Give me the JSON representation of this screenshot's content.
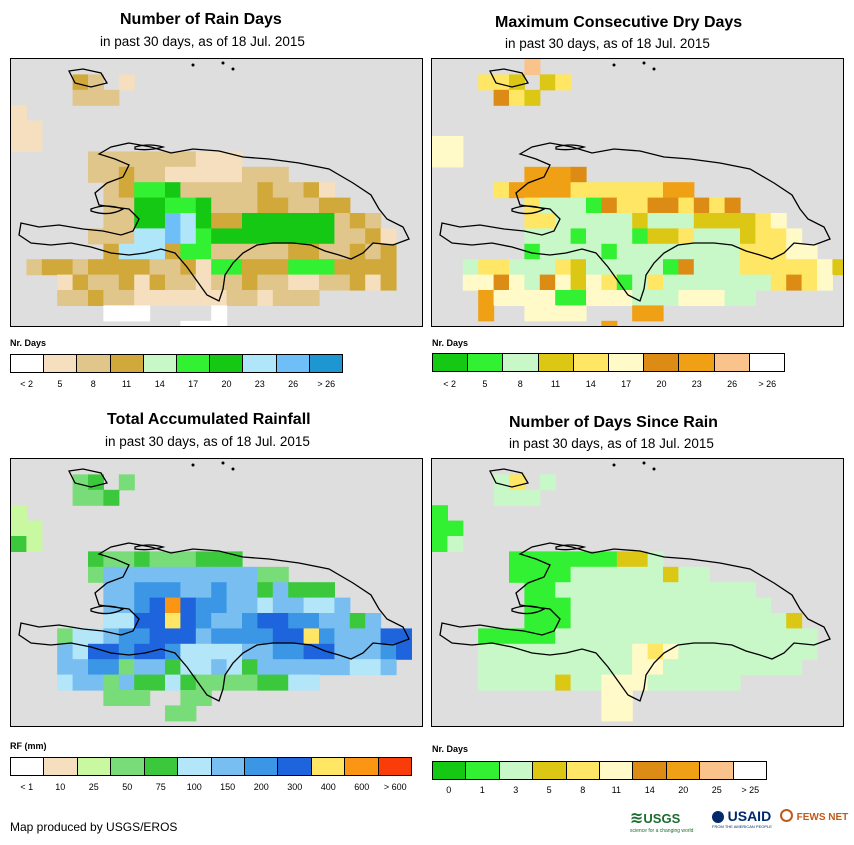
{
  "credit": "Map produced by USGS/EROS",
  "logos": {
    "usgs": "USGS",
    "usgs_tagline": "science for a changing world",
    "usaid": "USAID",
    "usaid_tagline": "FROM THE AMERICAN PEOPLE",
    "fews": "FEWS NET"
  },
  "panels": [
    {
      "title": "Number of Rain Days",
      "subtitle": "in past 30 days, as of 18 Jul. 2015",
      "legend_title": "Nr. Days",
      "legend_colors": [
        "#ffffff",
        "#f5dfbe",
        "#e1c68c",
        "#d0a93a",
        "#c8f8c8",
        "#32f032",
        "#14c814",
        "#b0e6fa",
        "#6ebef8",
        "#1e96d2"
      ],
      "legend_labels": [
        "< 2",
        "5",
        "8",
        "11",
        "14",
        "17",
        "20",
        "23",
        "26",
        "> 26"
      ],
      "grid": [
        "..........................",
        "....CB.A..................",
        "....BBB...................",
        "A.........................",
        "AA........................",
        "AA........................",
        ".....BBBBBBBAAA...........",
        ".....BBCBBAAAAABBB........",
        "......BCEEFBBBBBCBBCA.....",
        "......BBFFEEFBBBCCBBCC....",
        "......BBFFHGFCCFFFFFFBCB..",
        ".....BBBGGHGEFFFFFFFFBBCA.",
        "......CGGGCEEBBBBBCCBBCBC.",
        ".BCCBCCCCBBCAEECCCEEECCCC.",
        "...ACBBCACBBABBCBBAABBCAC.",
        "...BBCBBAAAAAABBABBB......",
        "......@@@....@............",
        "...........@@@............",
        "...........@@@............"
      ]
    },
    {
      "title": "Maximum Consecutive Dry Days",
      "subtitle": "in past 30 days, as of 18 Jul. 2015",
      "legend_title": "Nr. Days",
      "legend_colors": [
        "#14c814",
        "#32f032",
        "#c8f8c8",
        "#dcc814",
        "#ffe664",
        "#fffac8",
        "#dc8c14",
        "#f0a014",
        "#fac38c",
        "#ffffff"
      ],
      "legend_labels": [
        "< 2",
        "5",
        "8",
        "11",
        "14",
        "17",
        "20",
        "23",
        "26",
        "> 26"
      ],
      "grid": [
        "......H...................",
        "...DDC.CD.................",
        "....FDC...................",
        "..........................",
        "..........................",
        "EE........................",
        "EE.......................",
        "......GGGF................",
        "....DGGGGDDDDDDGG.........",
        "......DBBBAFDDFFDFDF......",
        "......DDBBBBBCBBBCCCCDE...",
        "......BBBABBBACCDBBBCDDE..",
        "......ABBBBABBBBBBBBDDDEE.",
        "..BDDBBBDCBBBBBAFBBBDDDDDEC",
        "..EEFEBFECEDABDBBBBBBBDFDE.",
        "...GEEEEAAEEEBBBEEEBB.....",
        "...G..EEEE...GG...........",
        "...........G..............",
        "...........G.G............"
      ]
    },
    {
      "title": "Total Accumulated Rainfall",
      "subtitle": "in past 30 days, as of 18 Jul. 2015",
      "legend_title": "RF (mm)",
      "legend_colors": [
        "#ffffff",
        "#f5dfbe",
        "#c8f8a0",
        "#78dc78",
        "#3cc83c",
        "#b4e6fa",
        "#78bef0",
        "#3c96e6",
        "#1e64dc",
        "#ffe664",
        "#fa9614",
        "#fa3c0a"
      ],
      "legend_labels": [
        "< 1",
        "10",
        "25",
        "50",
        "75",
        "100",
        "150",
        "200",
        "300",
        "400",
        "600",
        "> 600"
      ],
      "grid": [
        "..........................",
        "....CD.C..................",
        "....CCD...................",
        "B.........................",
        "BB........................",
        "DB........................",
        ".....DCCDCCCDDD...........",
        ".....CFFFFFFFFFFCC........",
        "......FFGGGFFGFFDFDDD.....",
        "......FFGHJHGGFFEFFEEF....",
        "......EEHHIHGFFGHHGGFFDF..",
        "...CEEFGGHHHFGGGGHHIGFFFHH",
        "...FEHHGHHGEEEEFFGGHHFFFGH",
        "...FFGGCFFDEEFEDFFFFFFEEF.",
        "...EFFCFDDEDCCCCDDEE......",
        "......CCC..CC.............",
        "..........CC..............",
        "..........................",
        ".........................."
      ]
    },
    {
      "title": "Number of Days Since Rain",
      "subtitle": "in past 30 days, as of 18 Jul. 2015",
      "legend_title": "Nr. Days",
      "legend_colors": [
        "#14c814",
        "#32f032",
        "#c8f8c8",
        "#dcc814",
        "#ffe664",
        "#fffac8",
        "#dc8c14",
        "#f0a014",
        "#fac38c",
        "#ffffff"
      ],
      "legend_labels": [
        "0",
        "1",
        "3",
        "5",
        "8",
        "11",
        "14",
        "20",
        "25",
        "> 25"
      ],
      "grid": [
        "..........................",
        "....BD.B..................",
        "....BBB...................",
        "A.........................",
        "AA........................",
        "AB........................",
        ".....AAAAAAACCB...........",
        ".....AAAABBBBBBCBB........",
        "......AABBBBBBBBBBBBB.....",
        "......AAABBBBBBBBBBBBB....",
        "......AAABBBBBBBBBBBBBBC..",
        "...AAAAABBBBBBBBBBBBBBBBB.",
        "...BBBBBBBBBBEDEBBBBBBBBB.",
        "...BBBBBBBBBBEEBBBBBBBBB..",
        "...BBBBBCBBEEEBBBBBB......",
        "...........EE.............",
        "...........EE.............",
        "..........................",
        ".........................."
      ]
    }
  ]
}
